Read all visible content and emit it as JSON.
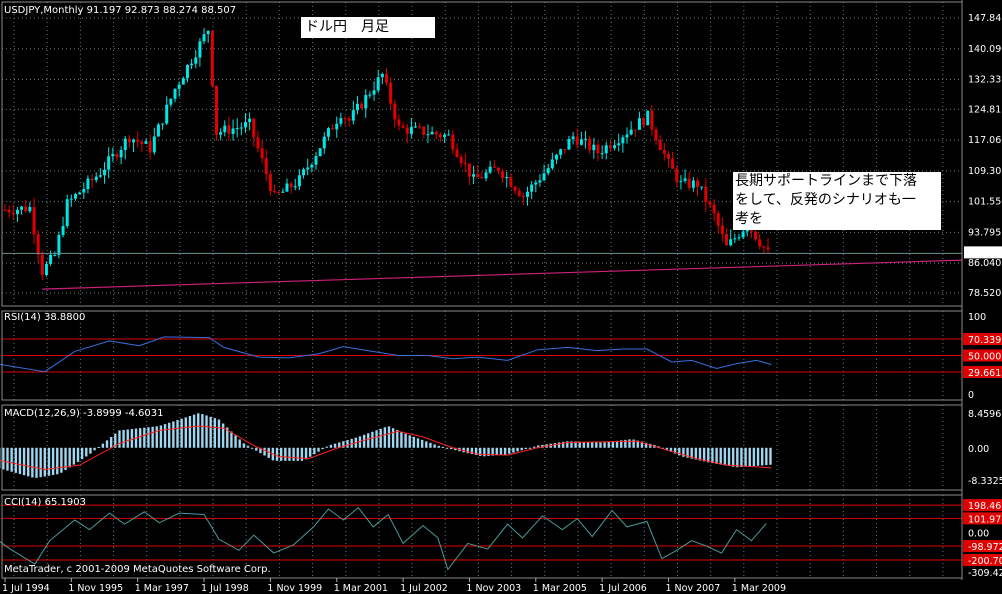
{
  "chart_data": {
    "type": "candlestick",
    "header": "USDJPY,Monthly  91.197 92.873 88.274 88.507",
    "symbol": "USDJPY",
    "timeframe": "Monthly",
    "ohlc_last": {
      "open": 91.197,
      "high": 92.873,
      "low": 88.274,
      "close": 88.507
    },
    "colors": {
      "bull": "#00e5e5",
      "bear": "#e00000",
      "trendline": "#d0207a",
      "grid": "#5f7f7f",
      "rsi": "#3a6fe0",
      "macd_hist": "#9fd6f0",
      "macd_signal": "#ff2020",
      "cci": "#4a9a9a",
      "level": "#e00000"
    },
    "price_axis": [
      "147.845",
      "140.090",
      "132.335",
      "124.815",
      "117.060",
      "109.305",
      "101.550",
      "93.795",
      "88.507",
      "86.040",
      "78.520"
    ],
    "ylim": [
      78.52,
      147.845
    ],
    "x_labels": [
      "1 Jul 1994",
      "1 Nov 1995",
      "1 Mar 1997",
      "1 Jul 1998",
      "1 Nov 1999",
      "1 Mar 2001",
      "1 Jul 2002",
      "1 Nov 2003",
      "1 Mar 2005",
      "1 Jul 2006",
      "1 Nov 2007",
      "1 Mar 2009"
    ],
    "x_range": [
      "1994-07",
      "2009-11"
    ],
    "price_path": [
      [
        "1994-07",
        99.5
      ],
      [
        "1995-01",
        100
      ],
      [
        "1995-04",
        84
      ],
      [
        "1995-07",
        88
      ],
      [
        "1995-10",
        101
      ],
      [
        "1996-06",
        109
      ],
      [
        "1997-01",
        118
      ],
      [
        "1997-06",
        115
      ],
      [
        "1997-12",
        130
      ],
      [
        "1998-08",
        145
      ],
      [
        "1998-10",
        119
      ],
      [
        "1999-06",
        121
      ],
      [
        "1999-12",
        102.5
      ],
      [
        "2000-06",
        107
      ],
      [
        "2001-04",
        124
      ],
      [
        "2001-06",
        122
      ],
      [
        "2002-02",
        133.5
      ],
      [
        "2002-06",
        120
      ],
      [
        "2003-01",
        119
      ],
      [
        "2003-06",
        118
      ],
      [
        "2003-12",
        107
      ],
      [
        "2004-06",
        110
      ],
      [
        "2004-12",
        103
      ],
      [
        "2005-06",
        110
      ],
      [
        "2005-12",
        118
      ],
      [
        "2006-06",
        114
      ],
      [
        "2007-06",
        123
      ],
      [
        "2007-11",
        111
      ],
      [
        "2008-02",
        106
      ],
      [
        "2008-06",
        106
      ],
      [
        "2008-10",
        98
      ],
      [
        "2009-01",
        90
      ],
      [
        "2009-06",
        96
      ],
      [
        "2009-11",
        88.5
      ]
    ],
    "trendline": {
      "from": [
        "1995-04",
        79.5
      ],
      "to": [
        "2009-11",
        86
      ]
    },
    "current_price": 88.507,
    "rsi": {
      "label": "RSI(14) 38.8800",
      "levels": [
        "70.339",
        "50.000",
        "29.661"
      ],
      "axis": [
        "100",
        "0"
      ],
      "ylim": [
        0,
        100
      ],
      "values": [
        [
          1994,
          43
        ],
        [
          1995.3,
          30
        ],
        [
          1995.9,
          55
        ],
        [
          1996.6,
          68
        ],
        [
          1997.2,
          62
        ],
        [
          1997.7,
          73
        ],
        [
          1998.6,
          72
        ],
        [
          1998.9,
          60
        ],
        [
          1999.6,
          48
        ],
        [
          2000.2,
          47
        ],
        [
          2000.8,
          52
        ],
        [
          2001.3,
          61
        ],
        [
          2001.9,
          55
        ],
        [
          2002.4,
          50
        ],
        [
          2003,
          50
        ],
        [
          2003.5,
          46
        ],
        [
          2004,
          48
        ],
        [
          2004.6,
          44
        ],
        [
          2005.2,
          57
        ],
        [
          2005.8,
          60
        ],
        [
          2006.4,
          56
        ],
        [
          2006.9,
          58
        ],
        [
          2007.4,
          58
        ],
        [
          2007.9,
          42
        ],
        [
          2008.3,
          44
        ],
        [
          2008.8,
          34
        ],
        [
          2009.2,
          40
        ],
        [
          2009.6,
          44
        ],
        [
          2009.9,
          38.88
        ]
      ]
    },
    "macd": {
      "label": "MACD(12,26,9) -3.8999 -4.6031",
      "axis": [
        "8.4596",
        "0.00",
        "-8.3325"
      ],
      "ylim": [
        -8.3325,
        8.4596
      ],
      "histogram": [
        [
          1994,
          -3.5
        ],
        [
          1995.1,
          -7
        ],
        [
          1995.6,
          -6
        ],
        [
          1996.2,
          -1.5
        ],
        [
          1996.8,
          4
        ],
        [
          1997.6,
          5
        ],
        [
          1998.4,
          8
        ],
        [
          1998.8,
          6.5
        ],
        [
          1999.3,
          1
        ],
        [
          1999.9,
          -3
        ],
        [
          2000.5,
          -3
        ],
        [
          2001,
          0.5
        ],
        [
          2001.6,
          2.5
        ],
        [
          2002.2,
          5
        ],
        [
          2002.6,
          3
        ],
        [
          2003.2,
          0.5
        ],
        [
          2003.7,
          -1
        ],
        [
          2004.1,
          -2
        ],
        [
          2004.6,
          -1.5
        ],
        [
          2005.2,
          0.5
        ],
        [
          2005.8,
          1.5
        ],
        [
          2006.5,
          1.2
        ],
        [
          2007.1,
          2
        ],
        [
          2007.6,
          0.5
        ],
        [
          2008.1,
          -2
        ],
        [
          2008.7,
          -3.5
        ],
        [
          2009.2,
          -4.5
        ],
        [
          2009.9,
          -3.9
        ]
      ],
      "signal": [
        [
          1994,
          -2
        ],
        [
          1995.3,
          -5
        ],
        [
          1996,
          -4
        ],
        [
          1996.8,
          1
        ],
        [
          1997.6,
          4
        ],
        [
          1998.4,
          5
        ],
        [
          1998.9,
          4.5
        ],
        [
          1999.5,
          0.5
        ],
        [
          2000,
          -2
        ],
        [
          2000.6,
          -2.5
        ],
        [
          2001.2,
          0
        ],
        [
          2001.8,
          2
        ],
        [
          2002.4,
          3.8
        ],
        [
          2002.9,
          2.5
        ],
        [
          2003.5,
          0
        ],
        [
          2004,
          -1.5
        ],
        [
          2004.6,
          -1.7
        ],
        [
          2005.2,
          0
        ],
        [
          2005.8,
          1.2
        ],
        [
          2006.6,
          1.4
        ],
        [
          2007.2,
          1.5
        ],
        [
          2007.8,
          -0.5
        ],
        [
          2008.4,
          -2.5
        ],
        [
          2009,
          -4
        ],
        [
          2009.9,
          -4.6
        ]
      ]
    },
    "cci": {
      "label": "CCI(14) 65.1903",
      "levels": [
        "198.46",
        "101.97",
        "-98.972",
        "-200.70"
      ],
      "axis": [
        "0.00",
        "-309.42"
      ],
      "ylim": [
        -309.42,
        250
      ],
      "values": [
        [
          1994,
          40
        ],
        [
          1994.6,
          -120
        ],
        [
          1995.1,
          -230
        ],
        [
          1995.4,
          -60
        ],
        [
          1995.9,
          90
        ],
        [
          1996.2,
          20
        ],
        [
          1996.6,
          140
        ],
        [
          1996.9,
          60
        ],
        [
          1997.3,
          150
        ],
        [
          1997.6,
          70
        ],
        [
          1998,
          140
        ],
        [
          1998.5,
          130
        ],
        [
          1998.8,
          -50
        ],
        [
          1999.2,
          -130
        ],
        [
          1999.5,
          -20
        ],
        [
          1999.9,
          -150
        ],
        [
          2000.3,
          -90
        ],
        [
          2000.7,
          40
        ],
        [
          2001,
          170
        ],
        [
          2001.3,
          90
        ],
        [
          2001.6,
          180
        ],
        [
          2001.9,
          40
        ],
        [
          2002.2,
          130
        ],
        [
          2002.5,
          -80
        ],
        [
          2002.9,
          50
        ],
        [
          2003.2,
          -40
        ],
        [
          2003.4,
          -270
        ],
        [
          2003.8,
          -80
        ],
        [
          2004.2,
          -120
        ],
        [
          2004.6,
          60
        ],
        [
          2004.9,
          -40
        ],
        [
          2005.3,
          120
        ],
        [
          2005.7,
          20
        ],
        [
          2006,
          100
        ],
        [
          2006.3,
          -30
        ],
        [
          2006.7,
          160
        ],
        [
          2007,
          40
        ],
        [
          2007.4,
          80
        ],
        [
          2007.7,
          -190
        ],
        [
          2008,
          -130
        ],
        [
          2008.3,
          -60
        ],
        [
          2008.6,
          -100
        ],
        [
          2008.9,
          -150
        ],
        [
          2009.2,
          20
        ],
        [
          2009.5,
          -60
        ],
        [
          2009.8,
          65.19
        ]
      ]
    }
  },
  "annotations": {
    "title": "ドル円　月足",
    "memo_lines": [
      "長期サポートラインまで下落",
      "をして、反発のシナリオも一",
      "考を"
    ]
  },
  "footer": "MetaTrader, c 2001-2009 MetaQuotes Software Corp."
}
